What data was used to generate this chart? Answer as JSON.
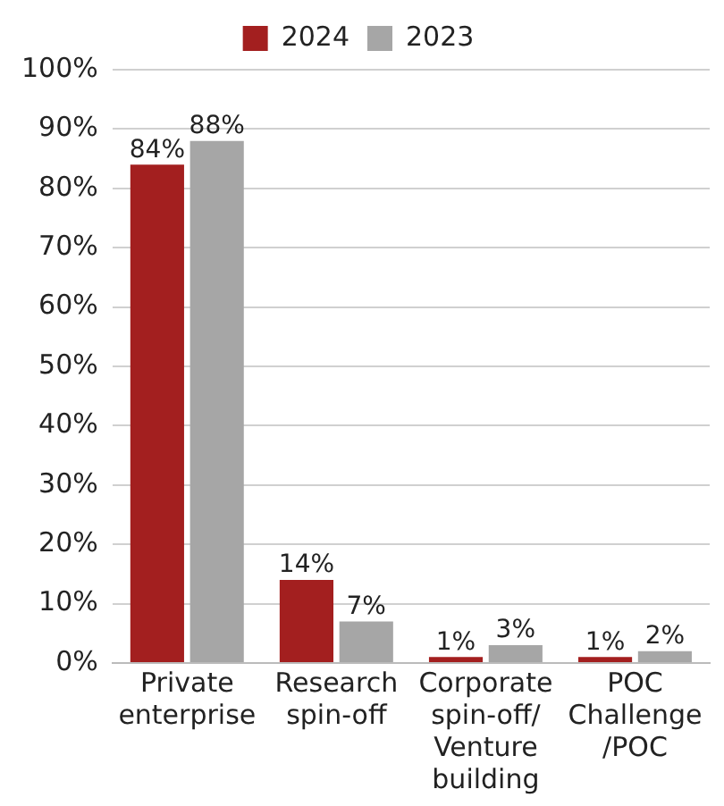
{
  "chart_data": {
    "type": "bar",
    "categories": [
      "Private\nenterprise",
      "Research\nspin-off",
      "Corporate\nspin-off/\nVenture\nbuilding",
      "POC\nChallenge\n/POC"
    ],
    "series": [
      {
        "name": "2024",
        "color": "#a31f1f",
        "values": [
          84,
          14,
          1,
          1
        ],
        "value_labels": [
          "84%",
          "14%",
          "1%",
          "1%"
        ]
      },
      {
        "name": "2023",
        "color": "#a6a6a6",
        "values": [
          88,
          7,
          3,
          2
        ],
        "value_labels": [
          "88%",
          "7%",
          "3%",
          "2%"
        ]
      }
    ],
    "ylim": [
      0,
      100
    ],
    "yticks": [
      {
        "value": 0,
        "label": "0%"
      },
      {
        "value": 10,
        "label": "10%"
      },
      {
        "value": 20,
        "label": "20%"
      },
      {
        "value": 30,
        "label": "30%"
      },
      {
        "value": 40,
        "label": "40%"
      },
      {
        "value": 50,
        "label": "50%"
      },
      {
        "value": 60,
        "label": "60%"
      },
      {
        "value": 70,
        "label": "70%"
      },
      {
        "value": 80,
        "label": "80%"
      },
      {
        "value": 90,
        "label": "90%"
      },
      {
        "value": 100,
        "label": "100%"
      }
    ],
    "grid": "y",
    "legend": "top"
  }
}
